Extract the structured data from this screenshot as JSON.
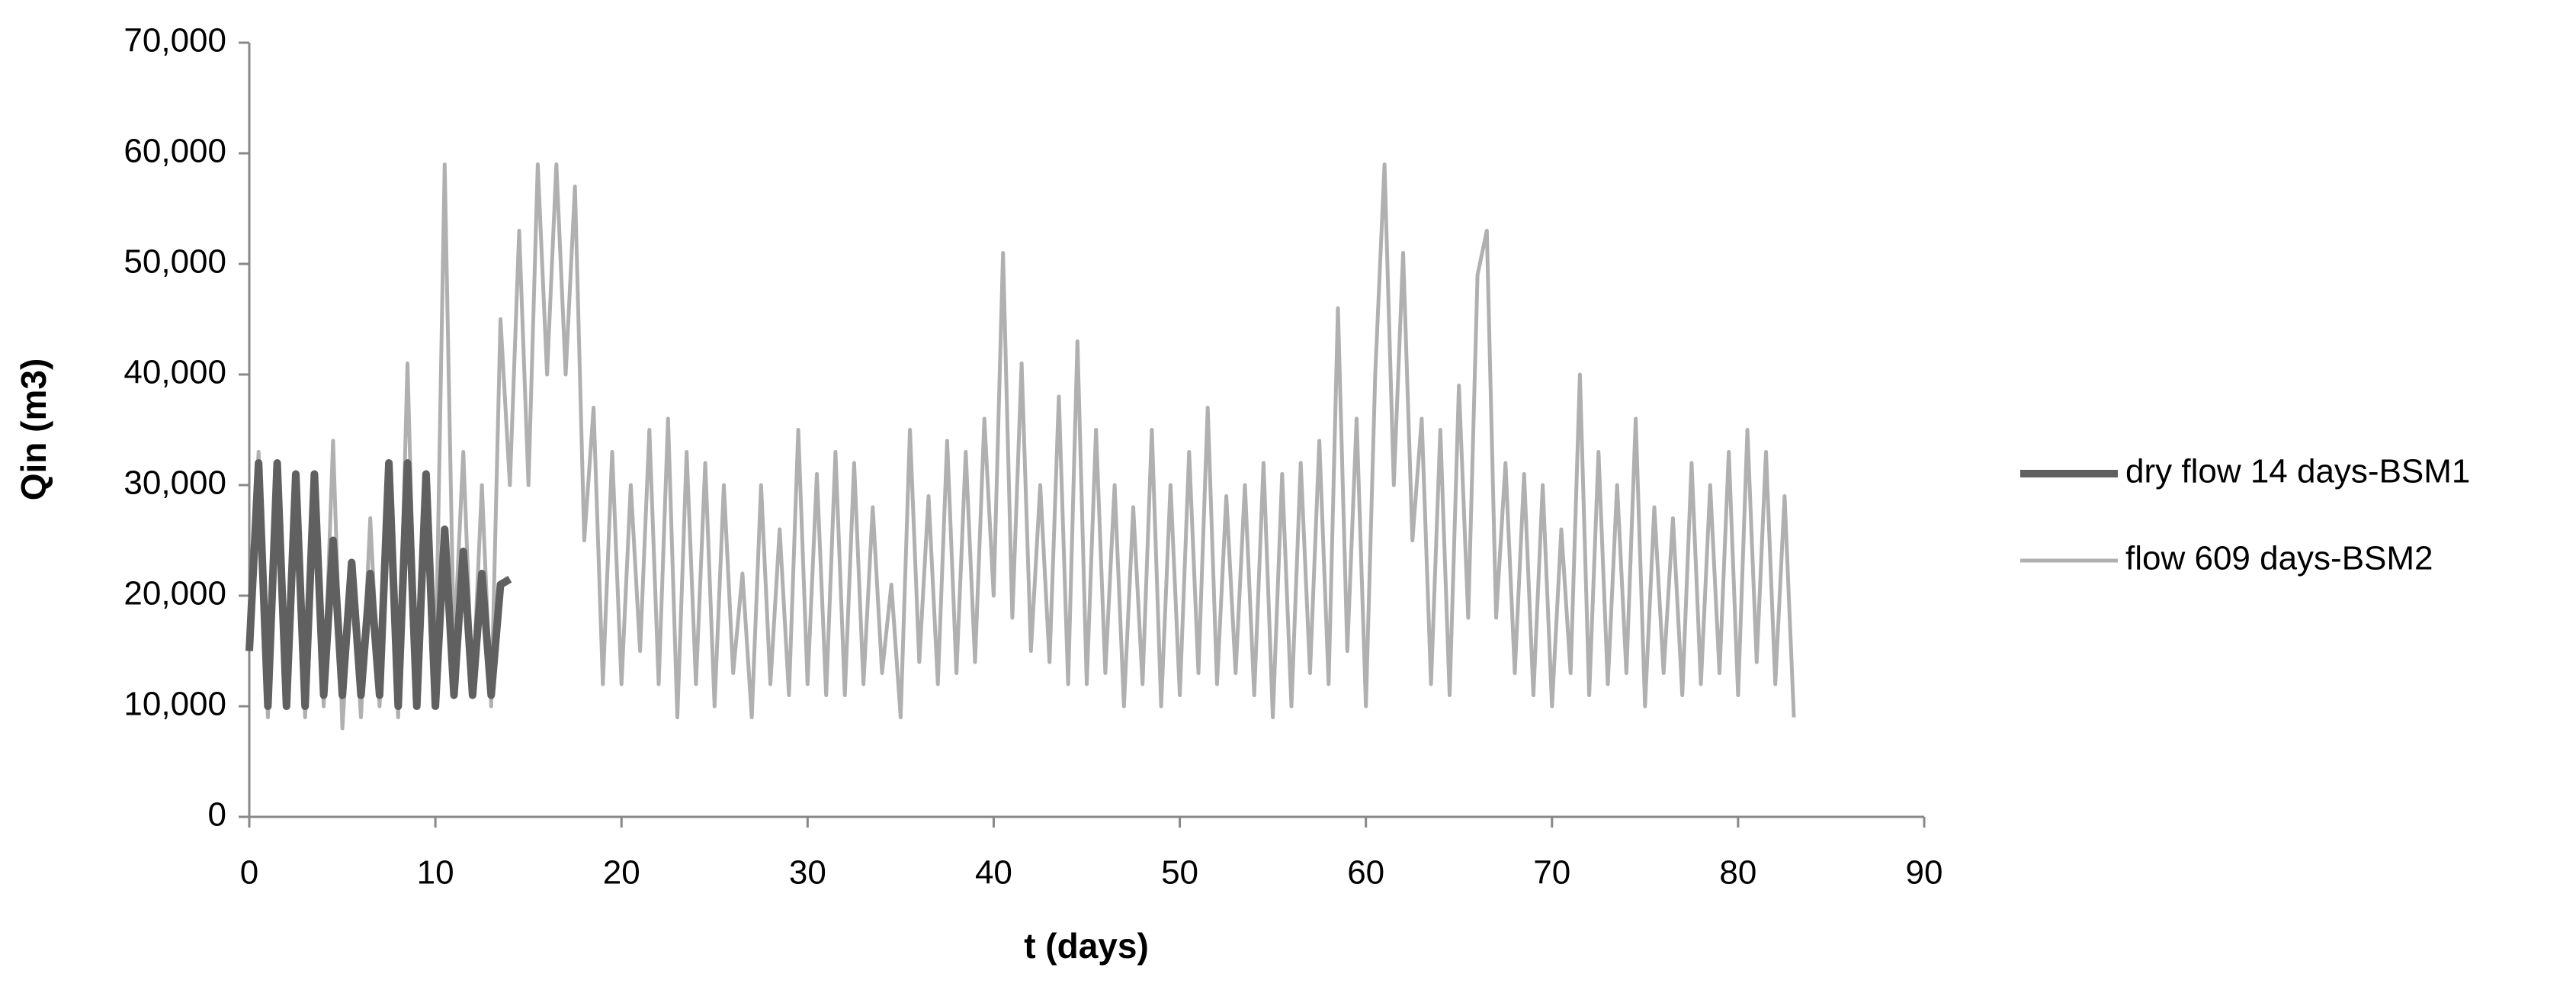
{
  "chart_data": {
    "type": "line",
    "x_label": "t (days)",
    "y_label": "Qin (m3)",
    "xlim": [
      0,
      90
    ],
    "xticks": [
      0,
      10,
      20,
      30,
      40,
      50,
      60,
      70,
      80,
      90
    ],
    "ylim": [
      0,
      70000
    ],
    "yticks": [
      0,
      {
        "value": 10000,
        "label": "10,000"
      },
      {
        "value": 20000,
        "label": "20,000"
      },
      {
        "value": 30000,
        "label": "30,000"
      },
      {
        "value": 40000,
        "label": "40,000"
      },
      {
        "value": 50000,
        "label": "50,000"
      },
      {
        "value": 60000,
        "label": "60,000"
      },
      {
        "value": 70000,
        "label": "70,000"
      }
    ],
    "grid": false,
    "legend": "right",
    "series": [
      {
        "name": "dry flow 14 days-BSM1",
        "color": "#606060",
        "width": 10,
        "x": [
          0,
          0.5,
          1,
          1.5,
          2,
          2.5,
          3,
          3.5,
          4,
          4.5,
          5,
          5.5,
          6,
          6.5,
          7,
          7.5,
          8,
          8.5,
          9,
          9.5,
          10,
          10.5,
          11,
          11.5,
          12,
          12.5,
          13,
          13.5,
          14
        ],
        "values": [
          15000,
          32000,
          10000,
          32000,
          10000,
          31000,
          10000,
          31000,
          11000,
          25000,
          11000,
          23000,
          11000,
          22000,
          11000,
          32000,
          10000,
          32000,
          10000,
          31000,
          10000,
          26000,
          11000,
          24000,
          11000,
          22000,
          11000,
          21000,
          21500
        ]
      },
      {
        "name": "flow 609 days-BSM2",
        "color": "#b0b0b0",
        "width": 5,
        "x": [
          0,
          0.5,
          1,
          1.5,
          2,
          2.5,
          3,
          3.5,
          4,
          4.5,
          5,
          5.5,
          6,
          6.5,
          7,
          7.5,
          8,
          8.5,
          9,
          9.5,
          10,
          10.5,
          11,
          11.5,
          12,
          12.5,
          13,
          13.5,
          14,
          14.5,
          15,
          15.5,
          16,
          16.5,
          17,
          17.5,
          18,
          18.5,
          19,
          19.5,
          20,
          20.5,
          21,
          21.5,
          22,
          22.5,
          23,
          23.5,
          24,
          24.5,
          25,
          25.5,
          26,
          26.5,
          27,
          27.5,
          28,
          28.5,
          29,
          29.5,
          30,
          30.5,
          31,
          31.5,
          32,
          32.5,
          33,
          33.5,
          34,
          34.5,
          35,
          35.5,
          36,
          36.5,
          37,
          37.5,
          38,
          38.5,
          39,
          39.5,
          40,
          40.5,
          41,
          41.5,
          42,
          42.5,
          43,
          43.5,
          44,
          44.5,
          45,
          45.5,
          46,
          46.5,
          47,
          47.5,
          48,
          48.5,
          49,
          49.5,
          50,
          50.5,
          51,
          51.5,
          52,
          52.5,
          53,
          53.5,
          54,
          54.5,
          55,
          55.5,
          56,
          56.5,
          57,
          57.5,
          58,
          58.5,
          59,
          59.5,
          60,
          60.5,
          61,
          61.5,
          62,
          62.5,
          63,
          63.5,
          64,
          64.5,
          65,
          65.5,
          66,
          66.5,
          67,
          67.5,
          68,
          68.5,
          69,
          69.5,
          70,
          70.5,
          71,
          71.5,
          72,
          72.5,
          73,
          73.5,
          74,
          74.5,
          75,
          75.5,
          76,
          76.5,
          77,
          77.5,
          78,
          78.5,
          79,
          79.5,
          80,
          80.5,
          81,
          81.5,
          82,
          82.5,
          83
        ],
        "values": [
          15000,
          33000,
          9000,
          28000,
          10000,
          30000,
          9000,
          27000,
          10000,
          34000,
          8000,
          22000,
          9000,
          27000,
          10000,
          30000,
          9000,
          41000,
          10000,
          30000,
          12000,
          59000,
          15000,
          33000,
          11000,
          30000,
          10000,
          45000,
          30000,
          53000,
          30000,
          59000,
          40000,
          59000,
          40000,
          57000,
          25000,
          37000,
          12000,
          33000,
          12000,
          30000,
          15000,
          35000,
          12000,
          36000,
          9000,
          33000,
          12000,
          32000,
          10000,
          30000,
          13000,
          22000,
          9000,
          30000,
          12000,
          26000,
          11000,
          35000,
          12000,
          31000,
          11000,
          33000,
          11000,
          32000,
          12000,
          28000,
          13000,
          21000,
          9000,
          35000,
          14000,
          29000,
          12000,
          34000,
          13000,
          33000,
          14000,
          36000,
          20000,
          51000,
          18000,
          41000,
          15000,
          30000,
          14000,
          38000,
          12000,
          43000,
          12000,
          35000,
          13000,
          30000,
          10000,
          28000,
          12000,
          35000,
          10000,
          30000,
          11000,
          33000,
          13000,
          37000,
          12000,
          29000,
          13000,
          30000,
          11000,
          32000,
          9000,
          31000,
          10000,
          32000,
          13000,
          34000,
          12000,
          46000,
          15000,
          36000,
          10000,
          40000,
          59000,
          30000,
          51000,
          25000,
          36000,
          12000,
          35000,
          11000,
          39000,
          18000,
          49000,
          53000,
          18000,
          32000,
          13000,
          31000,
          11000,
          30000,
          10000,
          26000,
          13000,
          40000,
          11000,
          33000,
          12000,
          30000,
          13000,
          36000,
          10000,
          28000,
          13000,
          27000,
          11000,
          32000,
          12000,
          30000,
          13000,
          33000,
          11000,
          35000,
          14000,
          33000,
          12000,
          29000,
          9000
        ]
      }
    ]
  }
}
